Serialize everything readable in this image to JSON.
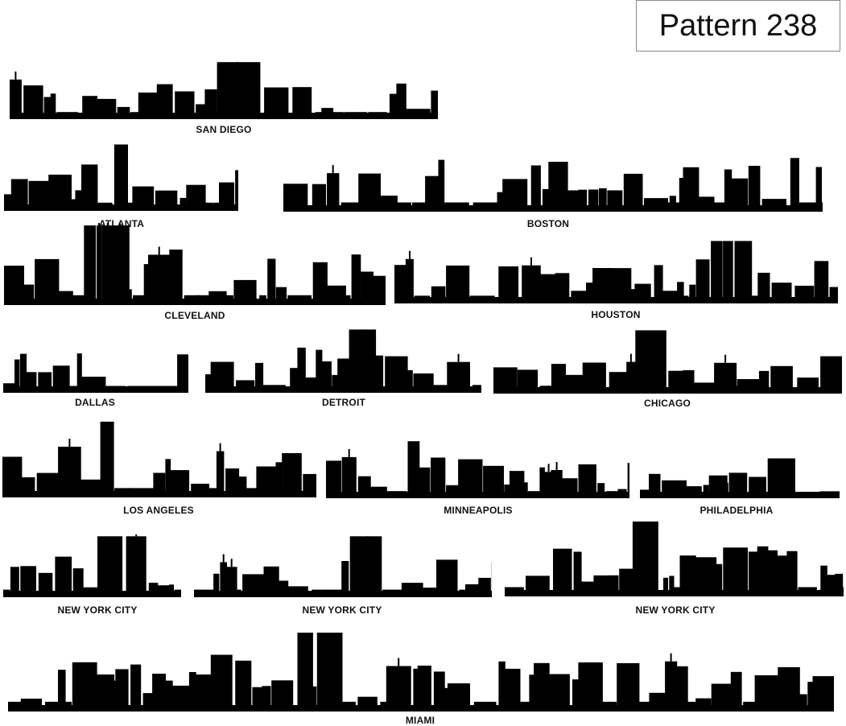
{
  "title": "Pattern 238",
  "fill_color": "#000000",
  "skylines": [
    {
      "label": "SAN DIEGO"
    },
    {
      "label": "ATLANTA"
    },
    {
      "label": "BOSTON"
    },
    {
      "label": "CLEVELAND"
    },
    {
      "label": "HOUSTON"
    },
    {
      "label": "DALLAS"
    },
    {
      "label": "DETROIT"
    },
    {
      "label": "CHICAGO"
    },
    {
      "label": "LOS ANGELES"
    },
    {
      "label": "MINNEAPOLIS"
    },
    {
      "label": "PHILADELPHIA"
    },
    {
      "label": "NEW YORK CITY"
    },
    {
      "label": "NEW YORK CITY"
    },
    {
      "label": "NEW YORK CITY"
    },
    {
      "label": "MIAMI"
    }
  ]
}
